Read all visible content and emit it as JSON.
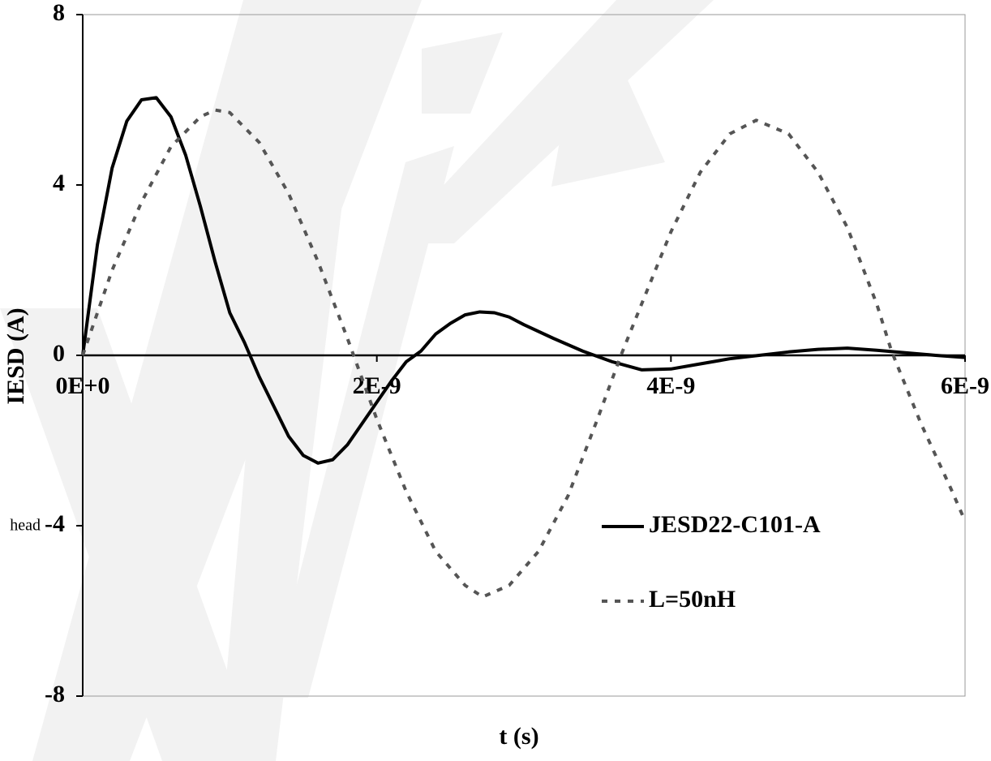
{
  "chart_data": {
    "type": "line",
    "xlabel": "t (s)",
    "ylabel": "IESD (A)",
    "annotation": "head",
    "xlim": [
      0,
      6e-09
    ],
    "ylim": [
      -8,
      8
    ],
    "xticks": [
      {
        "value": 0,
        "label": "0E+0"
      },
      {
        "value": 2e-09,
        "label": "2E-9"
      },
      {
        "value": 4e-09,
        "label": "4E-9"
      },
      {
        "value": 6e-09,
        "label": "6E-9"
      }
    ],
    "yticks": [
      -8,
      -4,
      0,
      4,
      8
    ],
    "legend": "lower-right",
    "series": [
      {
        "name": "JESD22-C101-A",
        "color": "#000000",
        "dash": false,
        "x": [
          0,
          1e-10,
          2e-10,
          3e-10,
          4e-10,
          5e-10,
          6e-10,
          7e-10,
          8e-10,
          9e-10,
          1e-09,
          1.1e-09,
          1.2e-09,
          1.3e-09,
          1.4e-09,
          1.5e-09,
          1.6e-09,
          1.7e-09,
          1.8e-09,
          1.9e-09,
          2e-09,
          2.1e-09,
          2.2e-09,
          2.3e-09,
          2.4e-09,
          2.5e-09,
          2.6e-09,
          2.7e-09,
          2.8e-09,
          2.9e-09,
          3e-09,
          3.2e-09,
          3.4e-09,
          3.6e-09,
          3.8e-09,
          4e-09,
          4.2e-09,
          4.4e-09,
          4.6e-09,
          4.8e-09,
          5e-09,
          5.2e-09,
          5.4e-09,
          5.6e-09,
          5.8e-09,
          6e-09
        ],
        "values": [
          0,
          2.6,
          4.4,
          5.5,
          6.0,
          6.05,
          5.6,
          4.7,
          3.5,
          2.2,
          1.0,
          0.3,
          -0.5,
          -1.2,
          -1.9,
          -2.35,
          -2.53,
          -2.45,
          -2.1,
          -1.6,
          -1.1,
          -0.6,
          -0.15,
          0.1,
          0.5,
          0.75,
          0.95,
          1.02,
          1.0,
          0.9,
          0.72,
          0.4,
          0.1,
          -0.15,
          -0.34,
          -0.32,
          -0.2,
          -0.08,
          0.0,
          0.08,
          0.14,
          0.17,
          0.12,
          0.06,
          0.0,
          -0.05
        ]
      },
      {
        "name": "L=50nH",
        "color": "#555555",
        "dash": true,
        "x": [
          0,
          2e-10,
          4e-10,
          6e-10,
          8e-10,
          9e-10,
          1e-09,
          1.2e-09,
          1.4e-09,
          1.6e-09,
          1.8e-09,
          2e-09,
          2.2e-09,
          2.4e-09,
          2.6e-09,
          2.72e-09,
          2.9e-09,
          3.1e-09,
          3.3e-09,
          3.5e-09,
          3.66e-09,
          3.8e-09,
          4e-09,
          4.2e-09,
          4.4e-09,
          4.58e-09,
          4.8e-09,
          5e-09,
          5.2e-09,
          5.4e-09,
          5.5e-09,
          5.7e-09,
          5.9e-09,
          6e-09
        ],
        "values": [
          0,
          2.0,
          3.6,
          4.9,
          5.6,
          5.76,
          5.7,
          5.0,
          3.8,
          2.2,
          0.4,
          -1.5,
          -3.2,
          -4.6,
          -5.4,
          -5.67,
          -5.4,
          -4.6,
          -3.3,
          -1.5,
          0,
          1.2,
          2.9,
          4.3,
          5.2,
          5.52,
          5.2,
          4.3,
          3.0,
          1.2,
          0.1,
          -1.6,
          -3.1,
          -3.89
        ]
      }
    ]
  }
}
